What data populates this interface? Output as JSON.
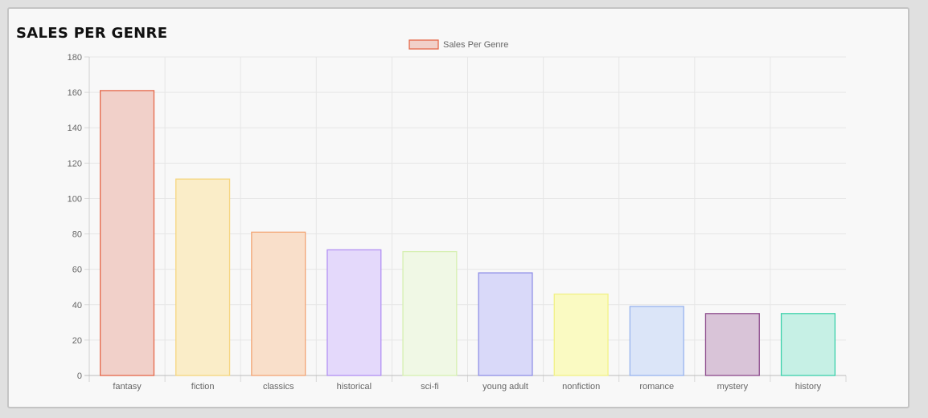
{
  "panel": {
    "title": "SALES PER GENRE"
  },
  "chart_data": {
    "type": "bar",
    "categories": [
      "fantasy",
      "fiction",
      "classics",
      "historical",
      "sci-fi",
      "young adult",
      "nonfiction",
      "romance",
      "mystery",
      "history"
    ],
    "series": [
      {
        "name": "Sales Per Genre",
        "values": [
          161,
          111,
          81,
          71,
          70,
          58,
          46,
          39,
          35,
          35
        ]
      }
    ],
    "ylim": [
      0,
      180
    ],
    "yticks": [
      0,
      20,
      40,
      60,
      80,
      100,
      120,
      140,
      160,
      180
    ],
    "grid": true,
    "legend": "top-center",
    "colors": {
      "fill": [
        "#f1d0c9",
        "#faedc8",
        "#f9dfca",
        "#e4d9fb",
        "#f0f8e5",
        "#d9d9f9",
        "#fafac2",
        "#dbe5f8",
        "#d9c4d8",
        "#c6f0e5"
      ],
      "border": [
        "#e5684a",
        "#f5d57e",
        "#f3a676",
        "#b18ff3",
        "#d6f0b2",
        "#8f8fe6",
        "#f2f286",
        "#98b4ef",
        "#8c4a8c",
        "#3dd1ab"
      ]
    }
  }
}
